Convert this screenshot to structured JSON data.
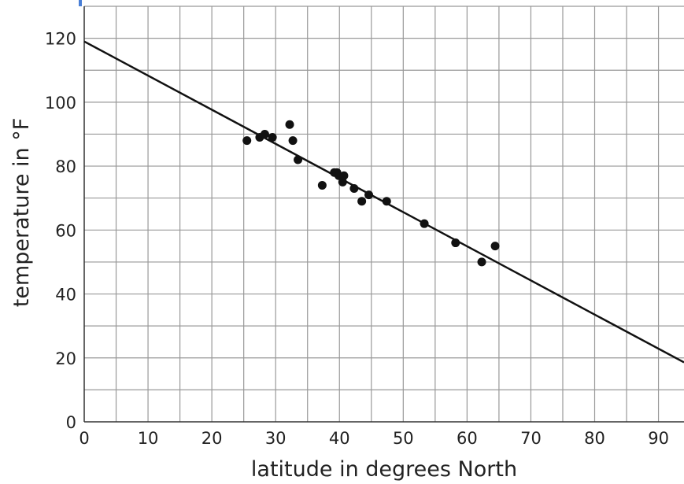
{
  "chart_data": {
    "type": "scatter",
    "title": "",
    "xlabel": "latitude in degrees North",
    "ylabel": "temperature in °F",
    "xlim": [
      0,
      94
    ],
    "ylim": [
      0,
      130
    ],
    "x_ticks": [
      0,
      10,
      20,
      30,
      40,
      50,
      60,
      70,
      80,
      90
    ],
    "y_ticks": [
      0,
      20,
      40,
      60,
      80,
      100,
      120
    ],
    "x_grid_step": 5,
    "y_grid_step": 10,
    "grid": true,
    "points": [
      {
        "x": 25.5,
        "y": 88
      },
      {
        "x": 27.5,
        "y": 89
      },
      {
        "x": 28.3,
        "y": 90
      },
      {
        "x": 29.5,
        "y": 89
      },
      {
        "x": 32.2,
        "y": 93
      },
      {
        "x": 32.7,
        "y": 88
      },
      {
        "x": 33.5,
        "y": 82
      },
      {
        "x": 37.3,
        "y": 74
      },
      {
        "x": 39.2,
        "y": 78
      },
      {
        "x": 39.6,
        "y": 78
      },
      {
        "x": 39.9,
        "y": 77
      },
      {
        "x": 40.5,
        "y": 75
      },
      {
        "x": 40.7,
        "y": 77
      },
      {
        "x": 42.3,
        "y": 73
      },
      {
        "x": 43.5,
        "y": 69
      },
      {
        "x": 44.6,
        "y": 71
      },
      {
        "x": 47.4,
        "y": 69
      },
      {
        "x": 53.3,
        "y": 62
      },
      {
        "x": 58.2,
        "y": 56
      },
      {
        "x": 62.3,
        "y": 50
      },
      {
        "x": 64.4,
        "y": 55
      }
    ],
    "trend_line": {
      "x": [
        0,
        94
      ],
      "y": [
        119,
        18.6
      ]
    },
    "colors": {
      "points": "#111111",
      "line": "#111111",
      "grid": "#999999",
      "accent": "#4a7fd6"
    }
  }
}
